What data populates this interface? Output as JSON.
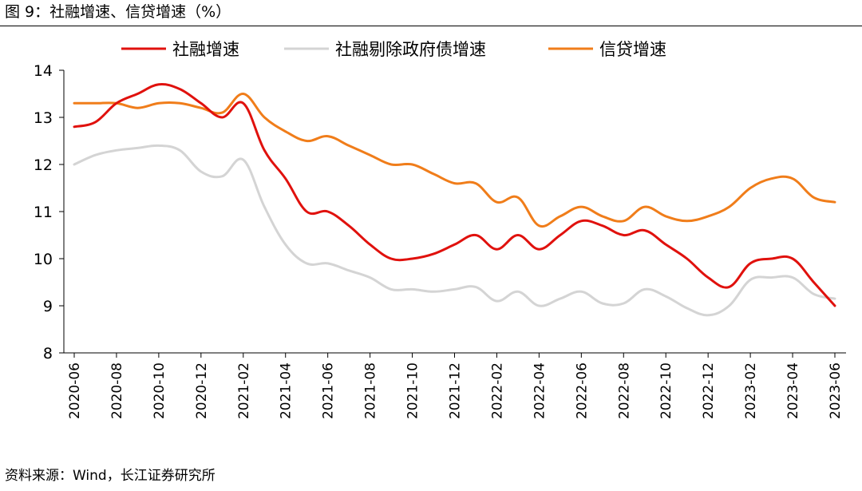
{
  "figure_title": "图 9：社融增速、信贷增速（%）",
  "source_note": "资料来源：Wind，长江证券研究所",
  "chart_data": {
    "type": "line",
    "title": "",
    "xlabel": "",
    "ylabel": "",
    "ylim": [
      8,
      14
    ],
    "yticks": [
      8,
      9,
      10,
      11,
      12,
      13,
      14
    ],
    "legend_position": "top",
    "x": [
      "2020-06",
      "2020-07",
      "2020-08",
      "2020-09",
      "2020-10",
      "2020-11",
      "2020-12",
      "2021-01",
      "2021-02",
      "2021-03",
      "2021-04",
      "2021-05",
      "2021-06",
      "2021-07",
      "2021-08",
      "2021-09",
      "2021-10",
      "2021-11",
      "2021-12",
      "2022-01",
      "2022-02",
      "2022-03",
      "2022-04",
      "2022-05",
      "2022-06",
      "2022-07",
      "2022-08",
      "2022-09",
      "2022-10",
      "2022-11",
      "2022-12",
      "2023-01",
      "2023-02",
      "2023-03",
      "2023-04",
      "2023-05",
      "2023-06"
    ],
    "tick_labels": [
      "2020-06",
      "2020-08",
      "2020-10",
      "2020-12",
      "2021-02",
      "2021-04",
      "2021-06",
      "2021-08",
      "2021-10",
      "2021-12",
      "2022-02",
      "2022-04",
      "2022-06",
      "2022-08",
      "2022-10",
      "2022-12",
      "2023-02",
      "2023-04",
      "2023-06"
    ],
    "series": [
      {
        "name": "社融增速",
        "color": "#e0110d",
        "values": [
          12.8,
          12.9,
          13.3,
          13.5,
          13.7,
          13.6,
          13.3,
          13.0,
          13.3,
          12.3,
          11.7,
          11.0,
          11.0,
          10.7,
          10.3,
          10.0,
          10.0,
          10.1,
          10.3,
          10.5,
          10.2,
          10.5,
          10.2,
          10.5,
          10.8,
          10.7,
          10.5,
          10.6,
          10.3,
          10.0,
          9.6,
          9.4,
          9.9,
          10.0,
          10.0,
          9.5,
          9.0
        ]
      },
      {
        "name": "社融剔除政府债增速",
        "color": "#d4d4d4",
        "values": [
          12.0,
          12.2,
          12.3,
          12.35,
          12.4,
          12.3,
          11.85,
          11.75,
          12.1,
          11.1,
          10.3,
          9.9,
          9.9,
          9.75,
          9.6,
          9.35,
          9.35,
          9.3,
          9.35,
          9.4,
          9.1,
          9.3,
          9.0,
          9.15,
          9.3,
          9.05,
          9.05,
          9.35,
          9.2,
          8.95,
          8.8,
          9.0,
          9.55,
          9.6,
          9.6,
          9.25,
          9.15
        ]
      },
      {
        "name": "信贷增速",
        "color": "#f07d1a",
        "values": [
          13.3,
          13.3,
          13.3,
          13.2,
          13.3,
          13.3,
          13.2,
          13.1,
          13.5,
          13.0,
          12.7,
          12.5,
          12.6,
          12.4,
          12.2,
          12.0,
          12.0,
          11.8,
          11.6,
          11.6,
          11.2,
          11.3,
          10.7,
          10.9,
          11.1,
          10.9,
          10.8,
          11.1,
          10.9,
          10.8,
          10.9,
          11.1,
          11.5,
          11.7,
          11.7,
          11.3,
          11.2
        ]
      }
    ]
  }
}
